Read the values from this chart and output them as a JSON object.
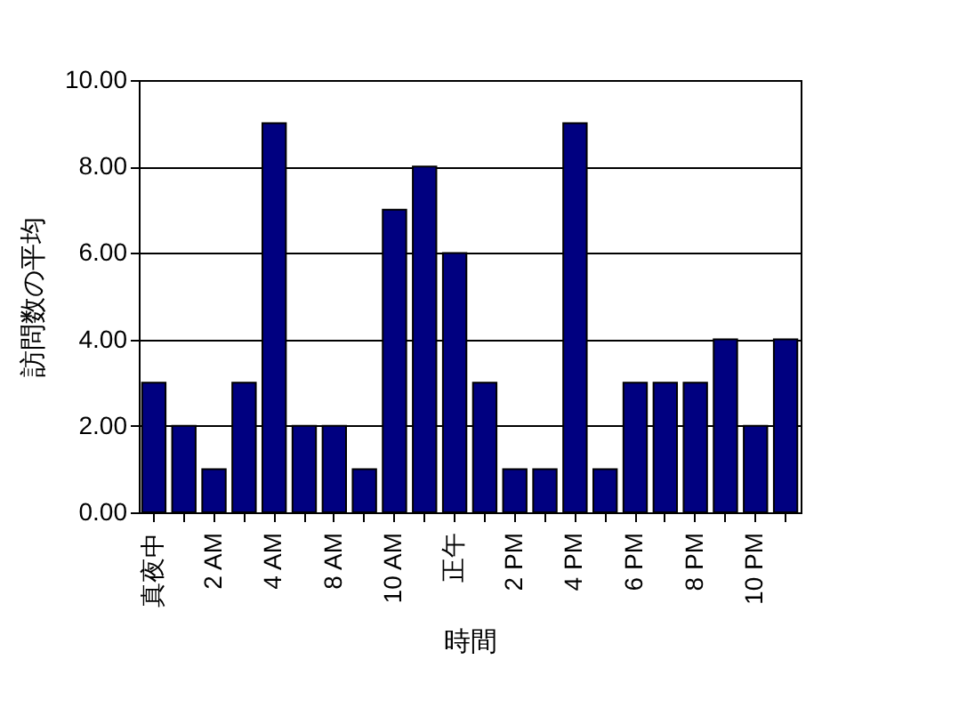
{
  "chart_data": {
    "type": "bar",
    "xlabel": "時間",
    "ylabel": "訪問数の平均",
    "categories": [
      "真夜中",
      null,
      "2 AM",
      null,
      "4 AM",
      null,
      "8 AM",
      null,
      "10 AM",
      null,
      "正午",
      null,
      "2 PM",
      null,
      "4 PM",
      null,
      "6 PM",
      null,
      "8 PM",
      null,
      "10 PM",
      null
    ],
    "values": [
      3,
      2,
      1,
      3,
      9,
      2,
      2,
      1,
      7,
      8,
      6,
      3,
      1,
      1,
      9,
      1,
      3,
      3,
      3,
      4,
      2,
      4
    ],
    "color": "#000080",
    "ylim": [
      0,
      10
    ],
    "yticks": [
      {
        "value": 0,
        "label": "0.00"
      },
      {
        "value": 2,
        "label": "2.00"
      },
      {
        "value": 4,
        "label": "4.00"
      },
      {
        "value": 6,
        "label": "6.00"
      },
      {
        "value": 8,
        "label": "8.00"
      },
      {
        "value": 10,
        "label": "10.00"
      }
    ],
    "grid": "y"
  }
}
